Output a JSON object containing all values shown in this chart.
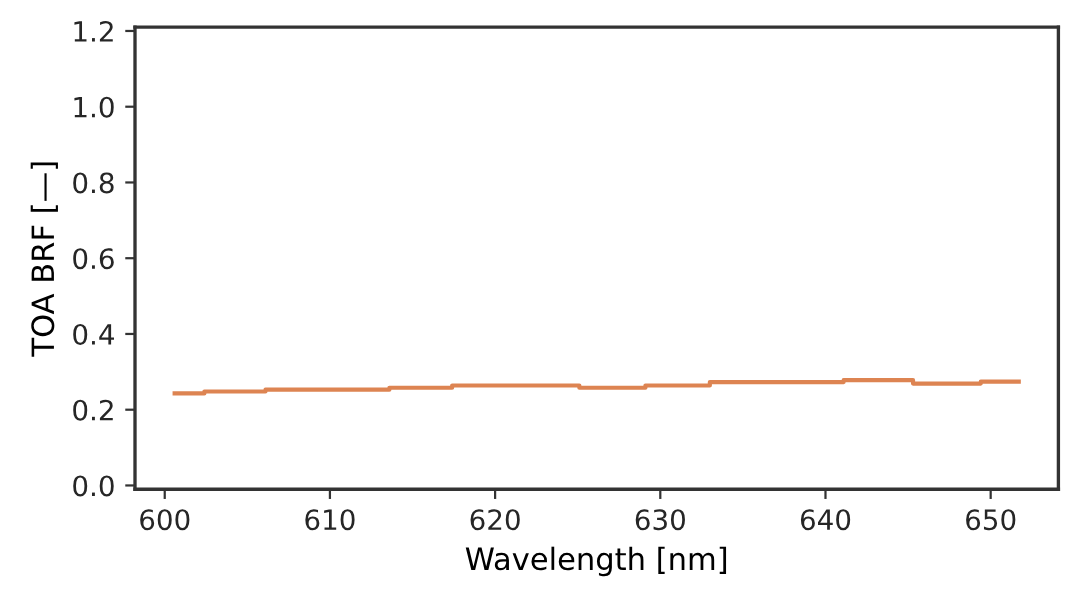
{
  "chart_data": {
    "type": "step",
    "xlabel": "Wavelength [nm]",
    "ylabel": "TOA BRF [—]",
    "x": [
      600.6,
      602.4,
      606.1,
      613.6,
      617.4,
      625.1,
      629.1,
      633.0,
      641.1,
      645.3,
      649.4,
      651.7
    ],
    "series": [
      {
        "color": "#dd8452",
        "values": [
          0.243,
          0.248,
          0.253,
          0.258,
          0.264,
          0.258,
          0.264,
          0.273,
          0.278,
          0.269,
          0.274,
          0.274
        ]
      }
    ],
    "xlim": [
      598.2,
      654.1
    ],
    "xticks": [
      600,
      610,
      620,
      630,
      640,
      650
    ],
    "ylim": [
      -0.01,
      1.21
    ],
    "yticks": [
      {
        "value": 0,
        "label": "0.0"
      },
      0.2,
      0.4,
      0.6,
      0.8,
      {
        "value": 1,
        "label": "1.0"
      },
      1.2
    ],
    "grid": false
  }
}
